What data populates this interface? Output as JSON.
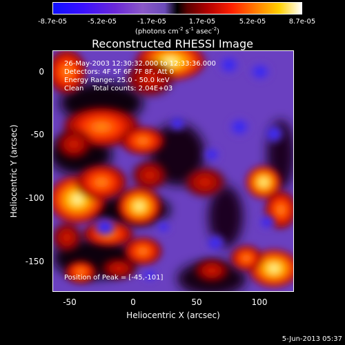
{
  "colorbar": {
    "ticks": [
      "-8.7e-05",
      "-5.2e-05",
      "-1.7e-05",
      "1.7e-05",
      "5.2e-05",
      "8.7e-05"
    ],
    "unit_prefix": "(photons cm",
    "unit_exp1": "-2",
    "unit_mid": " s",
    "unit_exp2": "-1",
    "unit_mid2": " asec",
    "unit_exp3": "-2",
    "unit_suffix": ")"
  },
  "title": "Reconstructed RHESSI Image",
  "annotations": {
    "time_range": "26-May-2003 12:30:32.000 to 12:33:36.000",
    "detectors": "Detectors: 4F 5F 6F 7F 8F, Att 0",
    "energy": "Energy Range: 25.0 - 50.0 keV",
    "clean": "Clean    Total counts: 2.04E+03",
    "peak": "Position of Peak = [-45,-101]"
  },
  "x_axis": {
    "label": "Heliocentric X (arcsec)",
    "ticks": [
      "-50",
      "0",
      "50",
      "100"
    ]
  },
  "y_axis": {
    "label": "Heliocentric Y (arcsec)",
    "ticks": [
      "0",
      "-50",
      "-100",
      "-150"
    ]
  },
  "timestamp": "5-Jun-2013 05:37"
}
